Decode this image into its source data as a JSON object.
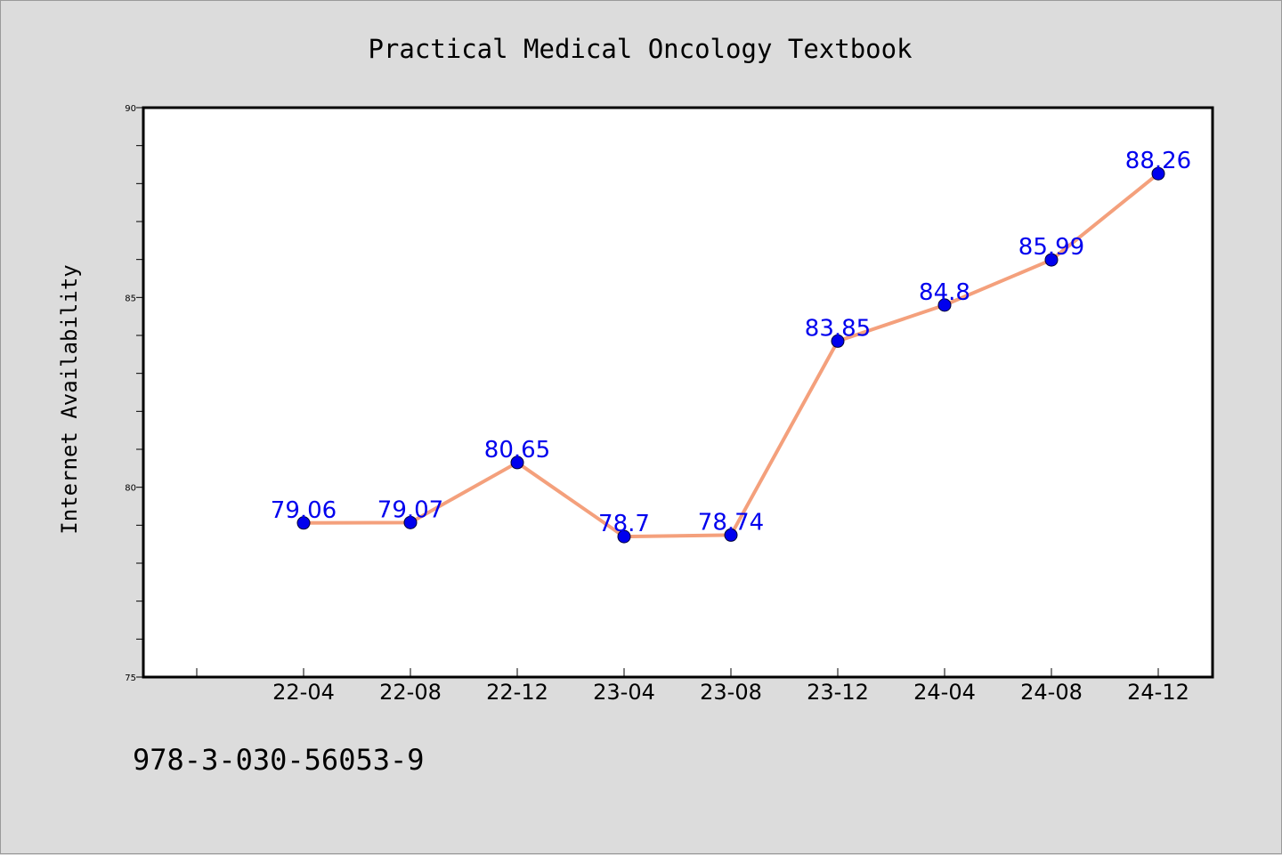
{
  "chart_data": {
    "type": "line",
    "title": "Practical Medical Oncology Textbook",
    "ylabel": "Internet Availability",
    "xlabel": "",
    "categories": [
      "22-04",
      "22-08",
      "22-12",
      "23-04",
      "23-08",
      "23-12",
      "24-04",
      "24-08",
      "24-12"
    ],
    "series": [
      {
        "values": [
          79.06,
          79.07,
          80.65,
          78.7,
          78.74,
          83.85,
          84.8,
          85.99,
          88.26
        ],
        "labels": [
          "79.06",
          "79.07",
          "80.65",
          "78.7",
          "78.74",
          "83.85",
          "84.8",
          "85.99",
          "88.26"
        ]
      }
    ],
    "ylim": [
      75,
      90
    ],
    "yticks": [
      75,
      80,
      85,
      90
    ],
    "ytick_labels": [
      "75",
      "80",
      "85",
      "90"
    ],
    "grid": false,
    "line_color": "#f4a07c",
    "marker_color": "#0000ee",
    "label_color": "#0000ee"
  },
  "footer": {
    "isbn": "978-3-030-56053-9"
  }
}
